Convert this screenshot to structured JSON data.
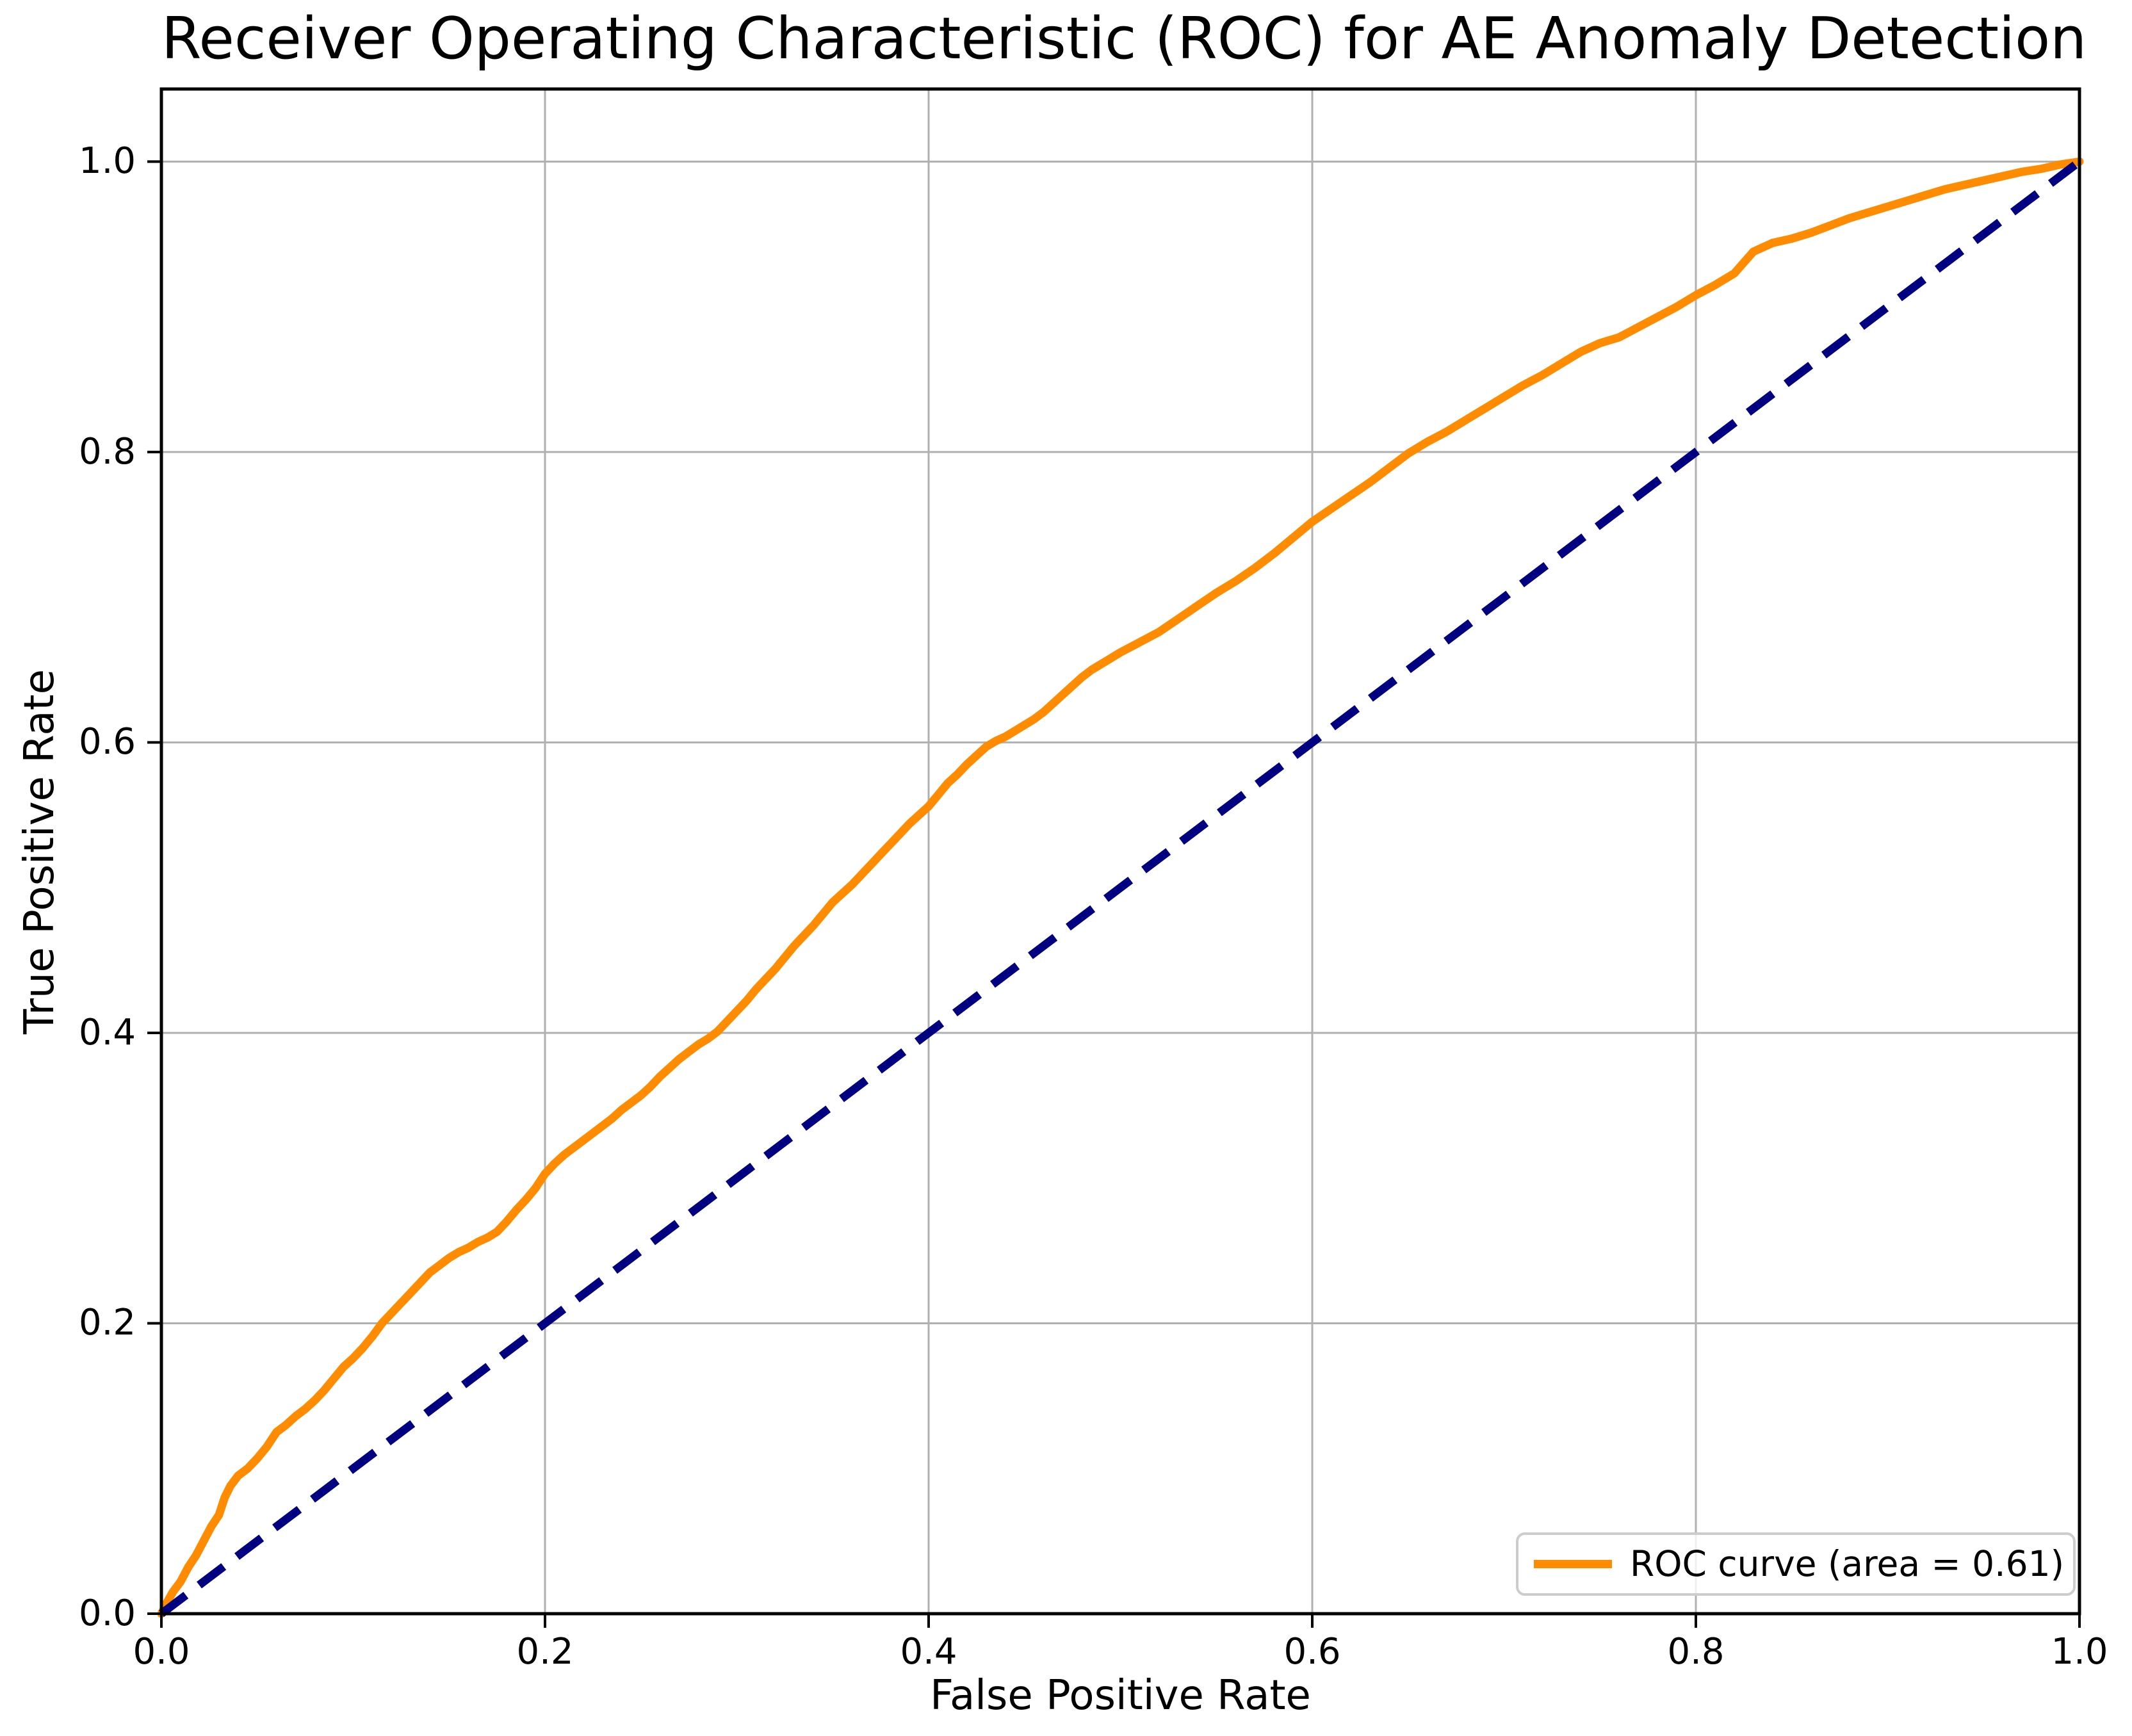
{
  "chart_data": {
    "type": "line",
    "title": "Receiver Operating Characteristic (ROC) for AE Anomaly Detection",
    "xlabel": "False Positive Rate",
    "ylabel": "True Positive Rate",
    "xlim": [
      0.0,
      1.0
    ],
    "ylim": [
      0.0,
      1.05
    ],
    "xticks": [
      0.0,
      0.2,
      0.4,
      0.6,
      0.8,
      1.0
    ],
    "yticks": [
      0.0,
      0.2,
      0.4,
      0.6,
      0.8,
      1.0
    ],
    "grid": true,
    "legend_position": "lower right",
    "auc": 0.61,
    "colors": {
      "roc": "#ff8c00",
      "chance": "#000080",
      "grid": "#b0b0b0",
      "spine": "#000000",
      "text": "#000000",
      "legend_border": "#cccccc"
    },
    "series": [
      {
        "name": "ROC curve (area = 0.61)",
        "slug": "roc-curve",
        "color": "#ff8c00",
        "width": 13,
        "style": "solid",
        "points": [
          [
            0.0,
            0.0
          ],
          [
            0.003,
            0.008
          ],
          [
            0.006,
            0.015
          ],
          [
            0.01,
            0.022
          ],
          [
            0.014,
            0.032
          ],
          [
            0.018,
            0.04
          ],
          [
            0.022,
            0.05
          ],
          [
            0.026,
            0.06
          ],
          [
            0.03,
            0.068
          ],
          [
            0.033,
            0.08
          ],
          [
            0.036,
            0.088
          ],
          [
            0.04,
            0.095
          ],
          [
            0.045,
            0.1
          ],
          [
            0.05,
            0.107
          ],
          [
            0.055,
            0.115
          ],
          [
            0.06,
            0.125
          ],
          [
            0.065,
            0.13
          ],
          [
            0.07,
            0.136
          ],
          [
            0.075,
            0.141
          ],
          [
            0.08,
            0.147
          ],
          [
            0.085,
            0.154
          ],
          [
            0.09,
            0.162
          ],
          [
            0.095,
            0.17
          ],
          [
            0.1,
            0.176
          ],
          [
            0.105,
            0.183
          ],
          [
            0.11,
            0.191
          ],
          [
            0.115,
            0.2
          ],
          [
            0.12,
            0.207
          ],
          [
            0.125,
            0.214
          ],
          [
            0.13,
            0.221
          ],
          [
            0.135,
            0.228
          ],
          [
            0.14,
            0.235
          ],
          [
            0.145,
            0.24
          ],
          [
            0.15,
            0.245
          ],
          [
            0.155,
            0.249
          ],
          [
            0.16,
            0.252
          ],
          [
            0.165,
            0.256
          ],
          [
            0.17,
            0.259
          ],
          [
            0.175,
            0.263
          ],
          [
            0.18,
            0.27
          ],
          [
            0.185,
            0.278
          ],
          [
            0.19,
            0.285
          ],
          [
            0.195,
            0.293
          ],
          [
            0.2,
            0.303
          ],
          [
            0.205,
            0.31
          ],
          [
            0.21,
            0.316
          ],
          [
            0.215,
            0.321
          ],
          [
            0.22,
            0.326
          ],
          [
            0.225,
            0.331
          ],
          [
            0.23,
            0.336
          ],
          [
            0.235,
            0.341
          ],
          [
            0.24,
            0.347
          ],
          [
            0.245,
            0.352
          ],
          [
            0.25,
            0.357
          ],
          [
            0.255,
            0.363
          ],
          [
            0.26,
            0.37
          ],
          [
            0.265,
            0.376
          ],
          [
            0.27,
            0.382
          ],
          [
            0.275,
            0.387
          ],
          [
            0.28,
            0.392
          ],
          [
            0.285,
            0.396
          ],
          [
            0.29,
            0.401
          ],
          [
            0.295,
            0.408
          ],
          [
            0.3,
            0.415
          ],
          [
            0.305,
            0.422
          ],
          [
            0.31,
            0.43
          ],
          [
            0.315,
            0.437
          ],
          [
            0.32,
            0.444
          ],
          [
            0.325,
            0.452
          ],
          [
            0.33,
            0.46
          ],
          [
            0.335,
            0.467
          ],
          [
            0.34,
            0.474
          ],
          [
            0.345,
            0.482
          ],
          [
            0.35,
            0.49
          ],
          [
            0.355,
            0.496
          ],
          [
            0.36,
            0.502
          ],
          [
            0.365,
            0.509
          ],
          [
            0.37,
            0.516
          ],
          [
            0.375,
            0.523
          ],
          [
            0.38,
            0.53
          ],
          [
            0.385,
            0.537
          ],
          [
            0.39,
            0.544
          ],
          [
            0.395,
            0.55
          ],
          [
            0.4,
            0.556
          ],
          [
            0.405,
            0.564
          ],
          [
            0.41,
            0.572
          ],
          [
            0.415,
            0.578
          ],
          [
            0.42,
            0.585
          ],
          [
            0.425,
            0.591
          ],
          [
            0.43,
            0.597
          ],
          [
            0.435,
            0.601
          ],
          [
            0.44,
            0.604
          ],
          [
            0.445,
            0.608
          ],
          [
            0.45,
            0.612
          ],
          [
            0.455,
            0.616
          ],
          [
            0.46,
            0.621
          ],
          [
            0.465,
            0.627
          ],
          [
            0.47,
            0.633
          ],
          [
            0.475,
            0.639
          ],
          [
            0.48,
            0.645
          ],
          [
            0.485,
            0.65
          ],
          [
            0.49,
            0.654
          ],
          [
            0.495,
            0.658
          ],
          [
            0.5,
            0.662
          ],
          [
            0.51,
            0.669
          ],
          [
            0.52,
            0.676
          ],
          [
            0.53,
            0.685
          ],
          [
            0.54,
            0.694
          ],
          [
            0.55,
            0.703
          ],
          [
            0.56,
            0.711
          ],
          [
            0.57,
            0.72
          ],
          [
            0.58,
            0.73
          ],
          [
            0.59,
            0.741
          ],
          [
            0.6,
            0.752
          ],
          [
            0.61,
            0.761
          ],
          [
            0.62,
            0.77
          ],
          [
            0.63,
            0.779
          ],
          [
            0.64,
            0.789
          ],
          [
            0.65,
            0.799
          ],
          [
            0.66,
            0.807
          ],
          [
            0.67,
            0.814
          ],
          [
            0.68,
            0.822
          ],
          [
            0.69,
            0.83
          ],
          [
            0.7,
            0.838
          ],
          [
            0.71,
            0.846
          ],
          [
            0.72,
            0.853
          ],
          [
            0.73,
            0.861
          ],
          [
            0.74,
            0.869
          ],
          [
            0.75,
            0.875
          ],
          [
            0.76,
            0.879
          ],
          [
            0.77,
            0.886
          ],
          [
            0.78,
            0.893
          ],
          [
            0.79,
            0.9
          ],
          [
            0.8,
            0.908
          ],
          [
            0.81,
            0.915
          ],
          [
            0.82,
            0.923
          ],
          [
            0.83,
            0.938
          ],
          [
            0.84,
            0.944
          ],
          [
            0.85,
            0.947
          ],
          [
            0.86,
            0.951
          ],
          [
            0.87,
            0.956
          ],
          [
            0.88,
            0.961
          ],
          [
            0.89,
            0.965
          ],
          [
            0.9,
            0.969
          ],
          [
            0.91,
            0.973
          ],
          [
            0.92,
            0.977
          ],
          [
            0.93,
            0.981
          ],
          [
            0.94,
            0.984
          ],
          [
            0.95,
            0.987
          ],
          [
            0.96,
            0.99
          ],
          [
            0.97,
            0.993
          ],
          [
            0.98,
            0.995
          ],
          [
            0.99,
            0.998
          ],
          [
            1.0,
            1.0
          ]
        ]
      },
      {
        "name": "chance diagonal",
        "slug": "chance-diagonal",
        "color": "#000080",
        "width": 13,
        "style": "dashed",
        "dash": "48 26",
        "points": [
          [
            0.0,
            0.0
          ],
          [
            1.0,
            1.0
          ]
        ]
      }
    ]
  }
}
